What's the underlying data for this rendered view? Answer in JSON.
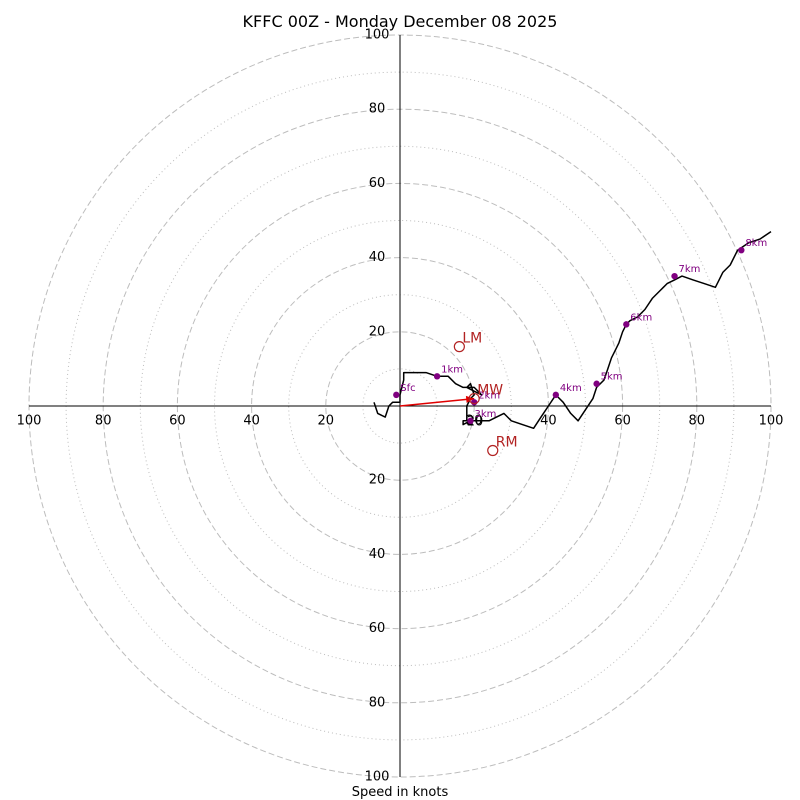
{
  "chart_data": {
    "type": "hodograph",
    "title": "KFFC 00Z - Monday December 08 2025",
    "xlabel": "Speed in knots",
    "range": [
      -100,
      100
    ],
    "ring_major": [
      20,
      40,
      60,
      80,
      100
    ],
    "ring_minor": [
      10,
      30,
      50,
      70,
      90
    ],
    "tick_values": [
      100,
      80,
      60,
      40,
      20
    ],
    "center_label": "20",
    "colors": {
      "grid": "#bdbdbd",
      "axis": "#000000",
      "trace": "#000000",
      "height": "#800080",
      "motion": "#b22222",
      "vector": "#e00000"
    },
    "trace": [
      [
        -7,
        1
      ],
      [
        -6,
        -2
      ],
      [
        -4,
        -3
      ],
      [
        -3,
        0
      ],
      [
        -2,
        1
      ],
      [
        -1,
        1
      ],
      [
        0,
        1
      ],
      [
        0,
        3
      ],
      [
        1,
        7
      ],
      [
        1,
        9
      ],
      [
        3,
        9
      ],
      [
        5,
        9
      ],
      [
        7,
        9
      ],
      [
        10,
        8
      ],
      [
        13,
        8
      ],
      [
        15,
        6
      ],
      [
        17,
        5
      ],
      [
        20,
        5
      ],
      [
        22,
        3
      ],
      [
        20,
        4
      ],
      [
        18,
        5
      ],
      [
        19,
        6
      ],
      [
        20,
        3
      ],
      [
        19,
        2
      ],
      [
        18,
        0
      ],
      [
        18,
        -1
      ],
      [
        18,
        -3
      ],
      [
        18,
        -4
      ],
      [
        19,
        -4
      ],
      [
        17,
        -4
      ],
      [
        17,
        -5
      ],
      [
        19,
        -4
      ],
      [
        21,
        -4
      ],
      [
        24,
        -4
      ],
      [
        26,
        -3
      ],
      [
        28,
        -2
      ],
      [
        30,
        -4
      ],
      [
        33,
        -5
      ],
      [
        36,
        -6
      ],
      [
        38,
        -3
      ],
      [
        40,
        0
      ],
      [
        42,
        3
      ],
      [
        44,
        1
      ],
      [
        46,
        -2
      ],
      [
        48,
        -4
      ],
      [
        50,
        -1
      ],
      [
        52,
        2
      ],
      [
        53,
        5
      ],
      [
        55,
        7
      ],
      [
        56,
        10
      ],
      [
        57,
        13
      ],
      [
        58,
        15
      ],
      [
        59,
        17
      ],
      [
        60,
        20
      ],
      [
        61,
        22
      ],
      [
        62,
        23
      ],
      [
        64,
        24
      ],
      [
        66,
        26
      ],
      [
        68,
        29
      ],
      [
        70,
        31
      ],
      [
        71,
        32
      ],
      [
        72,
        33
      ],
      [
        74,
        34
      ],
      [
        76,
        35
      ],
      [
        79,
        34
      ],
      [
        82,
        33
      ],
      [
        85,
        32
      ],
      [
        86,
        34
      ],
      [
        87,
        36
      ],
      [
        89,
        38
      ],
      [
        91,
        42
      ],
      [
        94,
        44
      ],
      [
        97,
        45
      ],
      [
        100,
        47
      ]
    ],
    "heights": [
      {
        "label": "Sfc",
        "u": -1,
        "v": 3
      },
      {
        "label": "1km",
        "u": 10,
        "v": 8
      },
      {
        "label": "2km",
        "u": 20,
        "v": 1
      },
      {
        "label": "3km",
        "u": 19,
        "v": -4
      },
      {
        "label": "4km",
        "u": 42,
        "v": 3
      },
      {
        "label": "5km",
        "u": 53,
        "v": 6
      },
      {
        "label": "6km",
        "u": 61,
        "v": 22
      },
      {
        "label": "7km",
        "u": 74,
        "v": 35
      },
      {
        "label": "8km",
        "u": 92,
        "v": 42
      }
    ],
    "storm_motions": [
      {
        "label": "LM",
        "u": 16,
        "v": 16
      },
      {
        "label": "MW",
        "u": 20,
        "v": 2
      },
      {
        "label": "RM",
        "u": 25,
        "v": -12
      }
    ],
    "mean_wind_vector": {
      "from": [
        0,
        0
      ],
      "to": [
        20,
        2
      ]
    }
  }
}
